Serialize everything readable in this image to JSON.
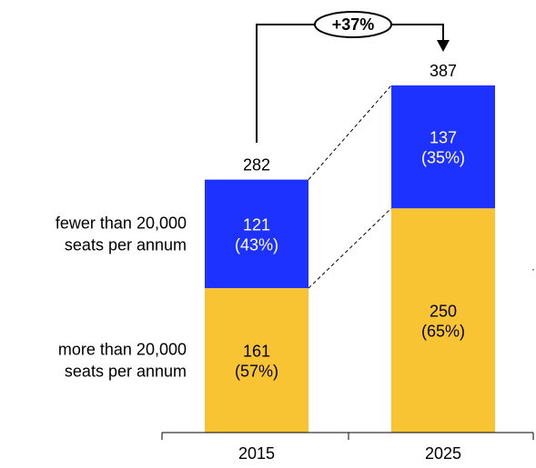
{
  "chart_data": {
    "type": "bar",
    "stacked": true,
    "categories": [
      "2015",
      "2025"
    ],
    "series": [
      {
        "name": "more than 20,000 seats per annum",
        "name_lines": [
          "more than 20,000",
          "seats per annum"
        ],
        "values": [
          161,
          250
        ],
        "shares": [
          "(57%)",
          "(65%)"
        ],
        "color": "#F9C433"
      },
      {
        "name": "fewer than 20,000 seats per annum",
        "name_lines": [
          "fewer than 20,000",
          "seats per annum"
        ],
        "values": [
          121,
          137
        ],
        "shares": [
          "(43%)",
          "(35%)"
        ],
        "color": "#1E32FF"
      }
    ],
    "totals": [
      282,
      387
    ],
    "growth_label": "+37%",
    "ylim": [
      0,
      387
    ]
  }
}
